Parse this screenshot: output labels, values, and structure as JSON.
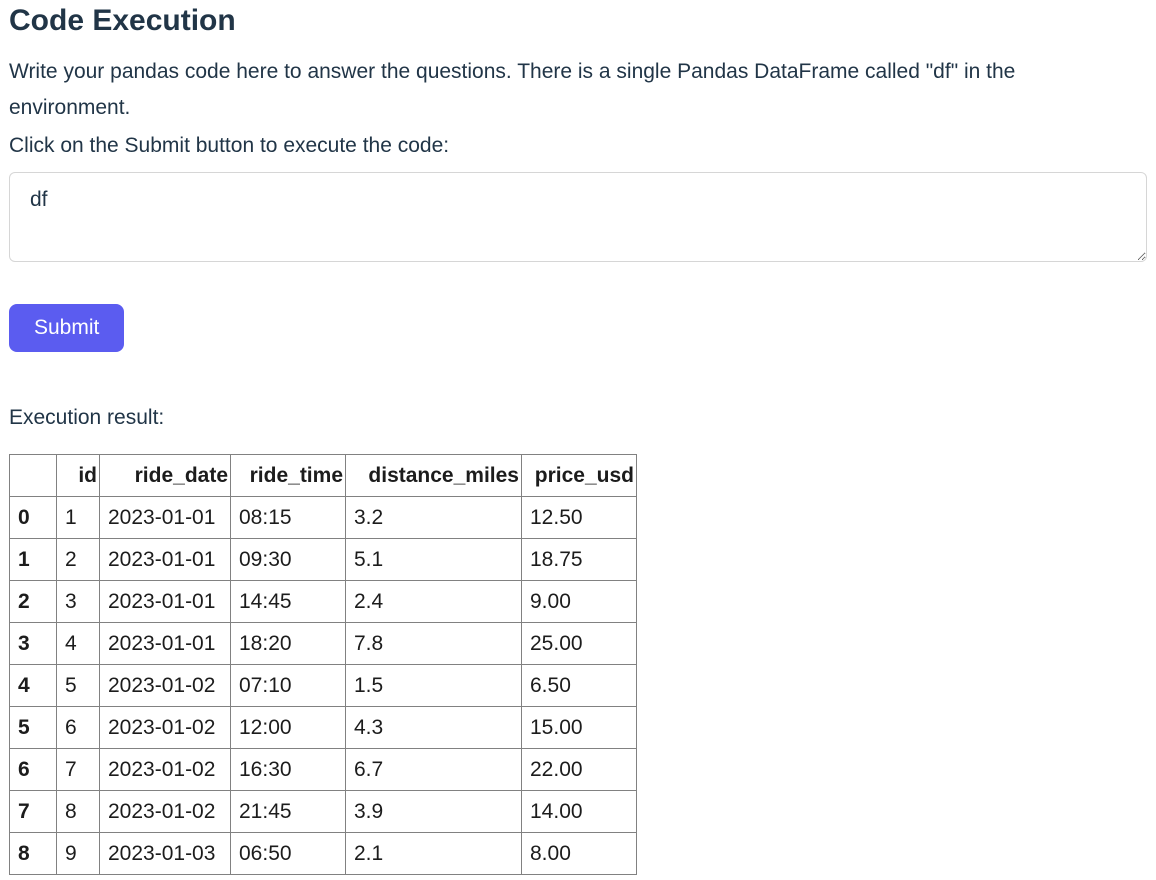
{
  "page": {
    "title": "Code Execution",
    "intro": "Write your pandas code here to answer the questions. There is a single Pandas DataFrame called \"df\" in the environment.",
    "instruction": "Click on the Submit button to execute the code:",
    "result_label": "Execution result:"
  },
  "editor": {
    "value": "df"
  },
  "toolbar": {
    "submit_label": "Submit"
  },
  "colors": {
    "accent": "#5b5cf0",
    "text": "#213547",
    "table_border": "#818181",
    "textarea_border": "#d6d6d6"
  },
  "result_table": {
    "columns": [
      "",
      "id",
      "ride_date",
      "ride_time",
      "distance_miles",
      "price_usd"
    ],
    "rows": [
      {
        "index": "0",
        "cells": [
          "1",
          "2023-01-01",
          "08:15",
          "3.2",
          "12.50"
        ]
      },
      {
        "index": "1",
        "cells": [
          "2",
          "2023-01-01",
          "09:30",
          "5.1",
          "18.75"
        ]
      },
      {
        "index": "2",
        "cells": [
          "3",
          "2023-01-01",
          "14:45",
          "2.4",
          "9.00"
        ]
      },
      {
        "index": "3",
        "cells": [
          "4",
          "2023-01-01",
          "18:20",
          "7.8",
          "25.00"
        ]
      },
      {
        "index": "4",
        "cells": [
          "5",
          "2023-01-02",
          "07:10",
          "1.5",
          "6.50"
        ]
      },
      {
        "index": "5",
        "cells": [
          "6",
          "2023-01-02",
          "12:00",
          "4.3",
          "15.00"
        ]
      },
      {
        "index": "6",
        "cells": [
          "7",
          "2023-01-02",
          "16:30",
          "6.7",
          "22.00"
        ]
      },
      {
        "index": "7",
        "cells": [
          "8",
          "2023-01-02",
          "21:45",
          "3.9",
          "14.00"
        ]
      },
      {
        "index": "8",
        "cells": [
          "9",
          "2023-01-03",
          "06:50",
          "2.1",
          "8.00"
        ]
      }
    ]
  }
}
